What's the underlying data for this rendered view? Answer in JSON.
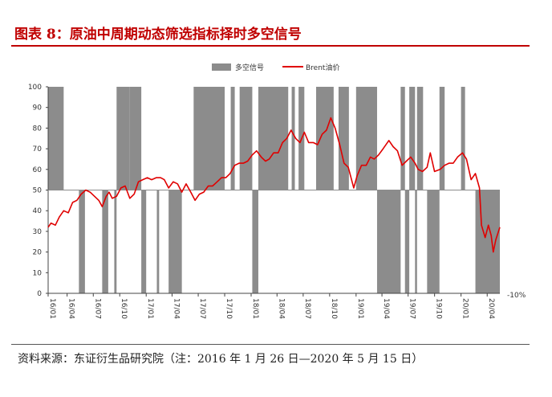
{
  "header": {
    "title": "图表 8：原油中周期动态筛选指标择时多空信号"
  },
  "footer": {
    "source": "资料来源：东证衍生品研究院（注：2016 年 1 月 26 日—2020 年 5 月 15 日）"
  },
  "chart_data": {
    "type": "area+line",
    "title": "",
    "xlabel": "",
    "ylabel": "",
    "ylim": [
      0,
      100
    ],
    "yticks": [
      "0",
      "10",
      "20",
      "30",
      "40",
      "50",
      "60",
      "70",
      "80",
      "90",
      "100"
    ],
    "right_axis_label": "-10%",
    "xlim": [
      "2016-01-26",
      "2020-05-15"
    ],
    "xticks": [
      "16/01",
      "16/04",
      "16/07",
      "16/10",
      "17/01",
      "17/04",
      "17/07",
      "17/10",
      "18/01",
      "18/04",
      "18/07",
      "18/10",
      "19/01",
      "19/04",
      "19/07",
      "19/10",
      "20/01",
      "20/04"
    ],
    "legend": {
      "position": "top",
      "entries": [
        "多空信号",
        "Brent油价"
      ]
    },
    "colors": {
      "signal": "#8c8c8c",
      "brent": "#e00000"
    },
    "series": [
      {
        "name": "多空信号",
        "type": "area",
        "baseline": 50,
        "long_level": 100,
        "short_level": 0,
        "short_periods": [
          [
            "2016-05-12",
            "2016-06-02"
          ],
          [
            "2016-08-01",
            "2016-08-22"
          ],
          [
            "2016-09-12",
            "2016-09-20"
          ],
          [
            "2016-12-15",
            "2017-01-01"
          ],
          [
            "2017-02-07",
            "2017-02-15"
          ],
          [
            "2017-03-20",
            "2017-05-05"
          ],
          [
            "2018-01-05",
            "2018-01-26"
          ],
          [
            "2019-03-15",
            "2019-06-05"
          ],
          [
            "2019-06-20",
            "2019-07-05"
          ],
          [
            "2019-07-25",
            "2019-08-01"
          ],
          [
            "2019-09-05",
            "2019-10-18"
          ],
          [
            "2020-02-20",
            "2020-05-15"
          ]
        ],
        "long_periods": [
          [
            "2016-01-26",
            "2016-03-20"
          ],
          [
            "2016-09-20",
            "2016-11-05"
          ],
          [
            "2016-11-05",
            "2016-12-15"
          ],
          [
            "2017-06-15",
            "2017-10-01"
          ],
          [
            "2017-10-22",
            "2017-11-05"
          ],
          [
            "2017-11-22",
            "2018-01-05"
          ],
          [
            "2018-01-26",
            "2018-05-10"
          ],
          [
            "2018-05-22",
            "2018-06-02"
          ],
          [
            "2018-06-15",
            "2018-07-05"
          ],
          [
            "2018-08-15",
            "2018-10-15"
          ],
          [
            "2018-11-01",
            "2018-12-07"
          ],
          [
            "2019-01-01",
            "2019-03-15"
          ],
          [
            "2019-06-05",
            "2019-06-20"
          ],
          [
            "2019-07-05",
            "2019-07-25"
          ],
          [
            "2019-08-01",
            "2019-08-22"
          ],
          [
            "2019-10-18",
            "2019-11-05"
          ],
          [
            "2020-01-01",
            "2020-01-15"
          ]
        ]
      },
      {
        "name": "Brent油价",
        "type": "line",
        "points": [
          [
            "2016-01-26",
            32
          ],
          [
            "2016-02-05",
            34
          ],
          [
            "2016-02-20",
            33
          ],
          [
            "2016-03-05",
            37
          ],
          [
            "2016-03-20",
            40
          ],
          [
            "2016-04-05",
            39
          ],
          [
            "2016-04-20",
            44
          ],
          [
            "2016-05-05",
            45
          ],
          [
            "2016-05-20",
            48
          ],
          [
            "2016-06-05",
            50
          ],
          [
            "2016-06-20",
            49
          ],
          [
            "2016-07-05",
            47
          ],
          [
            "2016-07-20",
            45
          ],
          [
            "2016-08-01",
            42
          ],
          [
            "2016-08-15",
            47
          ],
          [
            "2016-08-25",
            49
          ],
          [
            "2016-09-05",
            46
          ],
          [
            "2016-09-20",
            47
          ],
          [
            "2016-10-05",
            51
          ],
          [
            "2016-10-20",
            52
          ],
          [
            "2016-11-05",
            46
          ],
          [
            "2016-11-20",
            48
          ],
          [
            "2016-12-05",
            54
          ],
          [
            "2016-12-20",
            55
          ],
          [
            "2017-01-05",
            56
          ],
          [
            "2017-01-20",
            55
          ],
          [
            "2017-02-05",
            56
          ],
          [
            "2017-02-20",
            56
          ],
          [
            "2017-03-05",
            55
          ],
          [
            "2017-03-20",
            51
          ],
          [
            "2017-04-05",
            54
          ],
          [
            "2017-04-20",
            53
          ],
          [
            "2017-05-05",
            49
          ],
          [
            "2017-05-20",
            53
          ],
          [
            "2017-06-05",
            49
          ],
          [
            "2017-06-20",
            45
          ],
          [
            "2017-07-05",
            48
          ],
          [
            "2017-07-20",
            49
          ],
          [
            "2017-08-05",
            52
          ],
          [
            "2017-08-20",
            52
          ],
          [
            "2017-09-05",
            54
          ],
          [
            "2017-09-20",
            56
          ],
          [
            "2017-10-05",
            56
          ],
          [
            "2017-10-20",
            58
          ],
          [
            "2017-11-05",
            62
          ],
          [
            "2017-11-20",
            63
          ],
          [
            "2017-12-05",
            63
          ],
          [
            "2017-12-20",
            64
          ],
          [
            "2018-01-05",
            67
          ],
          [
            "2018-01-20",
            69
          ],
          [
            "2018-02-05",
            66
          ],
          [
            "2018-02-20",
            64
          ],
          [
            "2018-03-05",
            65
          ],
          [
            "2018-03-20",
            68
          ],
          [
            "2018-04-05",
            68
          ],
          [
            "2018-04-20",
            73
          ],
          [
            "2018-05-05",
            75
          ],
          [
            "2018-05-20",
            79
          ],
          [
            "2018-06-05",
            75
          ],
          [
            "2018-06-20",
            73
          ],
          [
            "2018-07-05",
            78
          ],
          [
            "2018-07-20",
            73
          ],
          [
            "2018-08-05",
            73
          ],
          [
            "2018-08-20",
            72
          ],
          [
            "2018-09-05",
            77
          ],
          [
            "2018-09-20",
            79
          ],
          [
            "2018-10-05",
            85
          ],
          [
            "2018-10-20",
            80
          ],
          [
            "2018-11-05",
            72
          ],
          [
            "2018-11-20",
            63
          ],
          [
            "2018-12-05",
            61
          ],
          [
            "2018-12-24",
            51
          ],
          [
            "2019-01-05",
            57
          ],
          [
            "2019-01-20",
            62
          ],
          [
            "2019-02-05",
            62
          ],
          [
            "2019-02-20",
            66
          ],
          [
            "2019-03-05",
            65
          ],
          [
            "2019-03-20",
            67
          ],
          [
            "2019-04-05",
            70
          ],
          [
            "2019-04-25",
            74
          ],
          [
            "2019-05-10",
            71
          ],
          [
            "2019-05-25",
            69
          ],
          [
            "2019-06-10",
            62
          ],
          [
            "2019-06-25",
            64
          ],
          [
            "2019-07-10",
            66
          ],
          [
            "2019-07-25",
            63
          ],
          [
            "2019-08-05",
            60
          ],
          [
            "2019-08-20",
            59
          ],
          [
            "2019-09-05",
            61
          ],
          [
            "2019-09-16",
            68
          ],
          [
            "2019-10-01",
            59
          ],
          [
            "2019-10-20",
            60
          ],
          [
            "2019-11-05",
            62
          ],
          [
            "2019-11-20",
            63
          ],
          [
            "2019-12-05",
            63
          ],
          [
            "2019-12-20",
            66
          ],
          [
            "2020-01-06",
            68
          ],
          [
            "2020-01-20",
            65
          ],
          [
            "2020-02-05",
            55
          ],
          [
            "2020-02-20",
            58
          ],
          [
            "2020-03-05",
            51
          ],
          [
            "2020-03-12",
            33
          ],
          [
            "2020-03-25",
            27
          ],
          [
            "2020-04-05",
            33
          ],
          [
            "2020-04-15",
            28
          ],
          [
            "2020-04-22",
            20
          ],
          [
            "2020-05-01",
            26
          ],
          [
            "2020-05-15",
            32
          ]
        ]
      }
    ]
  }
}
